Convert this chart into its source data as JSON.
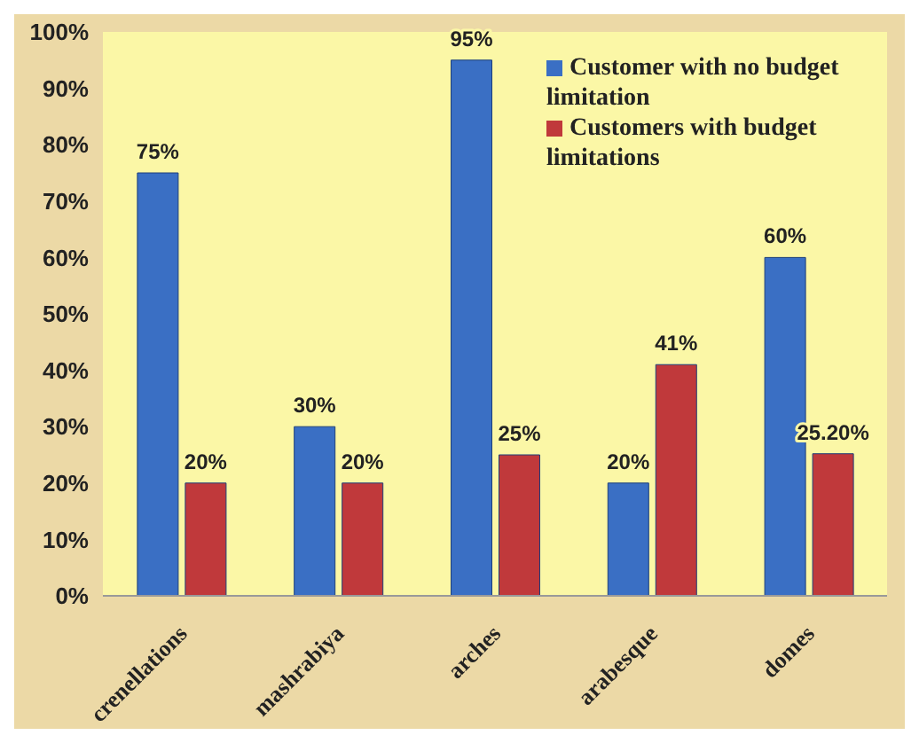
{
  "chart_data": {
    "type": "bar",
    "categories": [
      "crenellations",
      "mashrabiya",
      "arches",
      "arabesque",
      "domes"
    ],
    "series": [
      {
        "name": "Customer with no budget limitation",
        "color": "#3a6fc4",
        "values": [
          75,
          30,
          95,
          20,
          60
        ],
        "value_labels": [
          "75%",
          "30%",
          "95%",
          "20%",
          "60%"
        ]
      },
      {
        "name": "Customers with budget limitations",
        "color": "#c0393b",
        "values": [
          20,
          20,
          25,
          41,
          25.2
        ],
        "value_labels": [
          "20%",
          "20%",
          "25%",
          "41%",
          "25.20%"
        ]
      }
    ],
    "ylim": [
      0,
      100
    ],
    "yticks": [
      {
        "value": 0,
        "label": "0%"
      },
      {
        "value": 10,
        "label": "10%"
      },
      {
        "value": 20,
        "label": "20%"
      },
      {
        "value": 30,
        "label": "30%"
      },
      {
        "value": 40,
        "label": "40%"
      },
      {
        "value": 50,
        "label": "50%"
      },
      {
        "value": 60,
        "label": "60%"
      },
      {
        "value": 70,
        "label": "70%"
      },
      {
        "value": 80,
        "label": "80%"
      },
      {
        "value": 90,
        "label": "90%"
      },
      {
        "value": 100,
        "label": "100%"
      }
    ],
    "legend": "top right"
  }
}
